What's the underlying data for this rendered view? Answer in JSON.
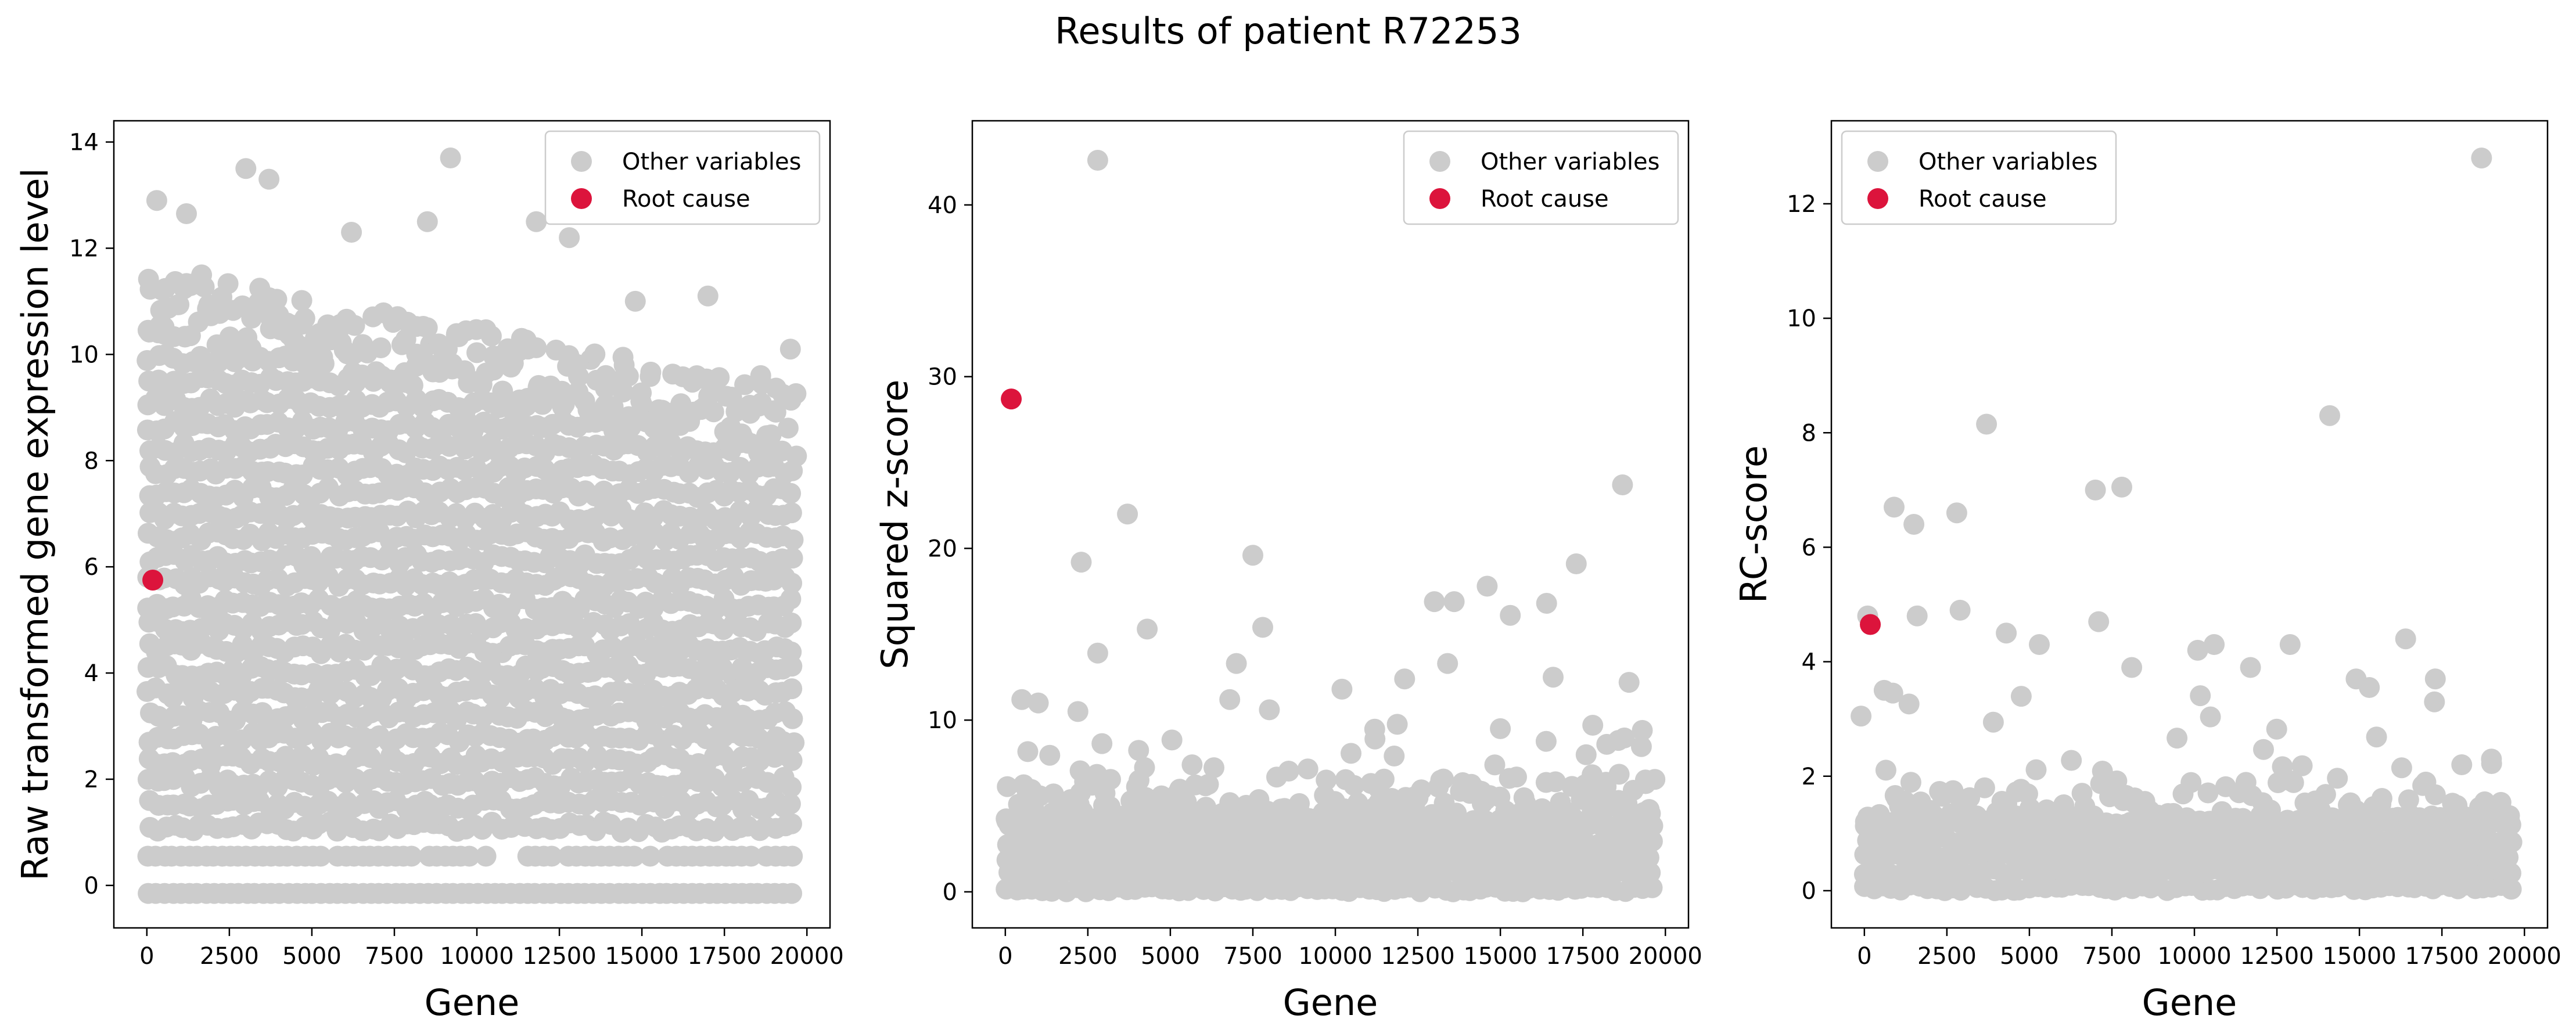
{
  "figure": {
    "title": "Results of patient R72253"
  },
  "colors": {
    "other": "#cccccc",
    "root": "#dc143c",
    "axis": "#000000",
    "legend_border": "#cccccc"
  },
  "chart_data": [
    {
      "type": "scatter",
      "xlabel": "Gene",
      "ylabel": "Raw transformed gene expression level",
      "xlim": [
        -1000,
        20700
      ],
      "ylim": [
        -0.8,
        14.4
      ],
      "xticks": [
        0,
        2500,
        5000,
        7500,
        10000,
        12500,
        15000,
        17500,
        20000
      ],
      "yticks": [
        0,
        2,
        4,
        6,
        8,
        10,
        12,
        14
      ],
      "legend": {
        "position": "top-right",
        "entries": [
          "Other variables",
          "Root cause"
        ]
      },
      "series": [
        {
          "name": "Other variables",
          "kind": "dense band of approx 19700 points spanning genes 0-19700, mostly between 0 and 10, with a floor row near -0.15 and a row near 0.55",
          "band": {
            "x": [
              0,
              19700
            ],
            "y": [
              0.55,
              10.4
            ],
            "y_upper_from": 10.4,
            "y_upper_to": 8.0,
            "floor_rows": [
              -0.15,
              0.55
            ]
          },
          "highlighted": [
            [
              300,
              12.9
            ],
            [
              1200,
              12.65
            ],
            [
              3000,
              13.5
            ],
            [
              3700,
              13.3
            ],
            [
              9200,
              13.7
            ],
            [
              6200,
              12.3
            ],
            [
              8500,
              12.5
            ],
            [
              11800,
              12.5
            ],
            [
              12800,
              12.2
            ],
            [
              17000,
              11.1
            ],
            [
              14800,
              11.0
            ],
            [
              19500,
              10.1
            ],
            [
              18600,
              9.6
            ]
          ]
        },
        {
          "name": "Root cause",
          "x": [
            180
          ],
          "y": [
            5.75
          ]
        }
      ]
    },
    {
      "type": "scatter",
      "xlabel": "Gene",
      "ylabel": "Squared z-score",
      "xlim": [
        -1000,
        20700
      ],
      "ylim": [
        -2.1,
        44.9
      ],
      "xticks": [
        0,
        2500,
        5000,
        7500,
        10000,
        12500,
        15000,
        17500,
        20000
      ],
      "yticks": [
        0,
        10,
        20,
        30,
        40
      ],
      "legend": {
        "position": "top-right",
        "entries": [
          "Other variables",
          "Root cause"
        ]
      },
      "series": [
        {
          "name": "Other variables",
          "kind": "dense band of approx 19700 points near 0 to 6",
          "band": {
            "x": [
              0,
              19700
            ],
            "y": [
              0,
              5.5
            ]
          },
          "highlighted": [
            [
              2800,
              42.6
            ],
            [
              3700,
              22.0
            ],
            [
              2300,
              19.2
            ],
            [
              7500,
              19.6
            ],
            [
              7800,
              15.4
            ],
            [
              4300,
              15.3
            ],
            [
              17300,
              19.1
            ],
            [
              18700,
              23.7
            ],
            [
              13000,
              16.9
            ],
            [
              13600,
              16.9
            ],
            [
              14600,
              17.8
            ],
            [
              15300,
              16.1
            ],
            [
              16400,
              16.8
            ],
            [
              2800,
              13.9
            ],
            [
              7000,
              13.3
            ],
            [
              6800,
              11.2
            ],
            [
              10200,
              11.8
            ],
            [
              12100,
              12.4
            ],
            [
              13400,
              13.3
            ],
            [
              16600,
              12.5
            ],
            [
              18900,
              12.2
            ],
            [
              1000,
              11.0
            ],
            [
              500,
              11.2
            ],
            [
              2200,
              10.5
            ],
            [
              8000,
              10.6
            ],
            [
              11200,
              8.9
            ],
            [
              15000,
              9.5
            ],
            [
              17800,
              9.7
            ],
            [
              19300,
              9.4
            ]
          ]
        },
        {
          "name": "Root cause",
          "x": [
            180
          ],
          "y": [
            28.7
          ]
        }
      ]
    },
    {
      "type": "scatter",
      "xlabel": "Gene",
      "ylabel": "RC-score",
      "xlim": [
        -1000,
        20700
      ],
      "ylim": [
        -0.65,
        13.45
      ],
      "xticks": [
        0,
        2500,
        5000,
        7500,
        10000,
        12500,
        15000,
        17500,
        20000
      ],
      "yticks": [
        0,
        2,
        4,
        6,
        8,
        10,
        12
      ],
      "legend": {
        "position": "top-left",
        "entries": [
          "Other variables",
          "Root cause"
        ]
      },
      "series": [
        {
          "name": "Other variables",
          "kind": "dense band of approx 19700 points near 0 to 1.8",
          "band": {
            "x": [
              0,
              19700
            ],
            "y": [
              0,
              1.8
            ]
          },
          "highlighted": [
            [
              18700,
              12.8
            ],
            [
              3700,
              8.15
            ],
            [
              14100,
              8.3
            ],
            [
              7000,
              7.0
            ],
            [
              7800,
              7.05
            ],
            [
              900,
              6.7
            ],
            [
              1500,
              6.4
            ],
            [
              2800,
              6.6
            ],
            [
              100,
              4.8
            ],
            [
              2900,
              4.9
            ],
            [
              4300,
              4.5
            ],
            [
              7100,
              4.7
            ],
            [
              10100,
              4.2
            ],
            [
              10600,
              4.3
            ],
            [
              12900,
              4.3
            ],
            [
              16400,
              4.4
            ],
            [
              17300,
              3.7
            ],
            [
              -100,
              3.05
            ],
            [
              600,
              3.5
            ],
            [
              1600,
              4.8
            ],
            [
              5300,
              4.3
            ],
            [
              8100,
              3.9
            ],
            [
              11700,
              3.9
            ],
            [
              14900,
              3.7
            ],
            [
              15300,
              3.55
            ],
            [
              18100,
              2.2
            ],
            [
              19000,
              2.3
            ]
          ]
        },
        {
          "name": "Root cause",
          "x": [
            180
          ],
          "y": [
            4.65
          ]
        }
      ]
    }
  ]
}
